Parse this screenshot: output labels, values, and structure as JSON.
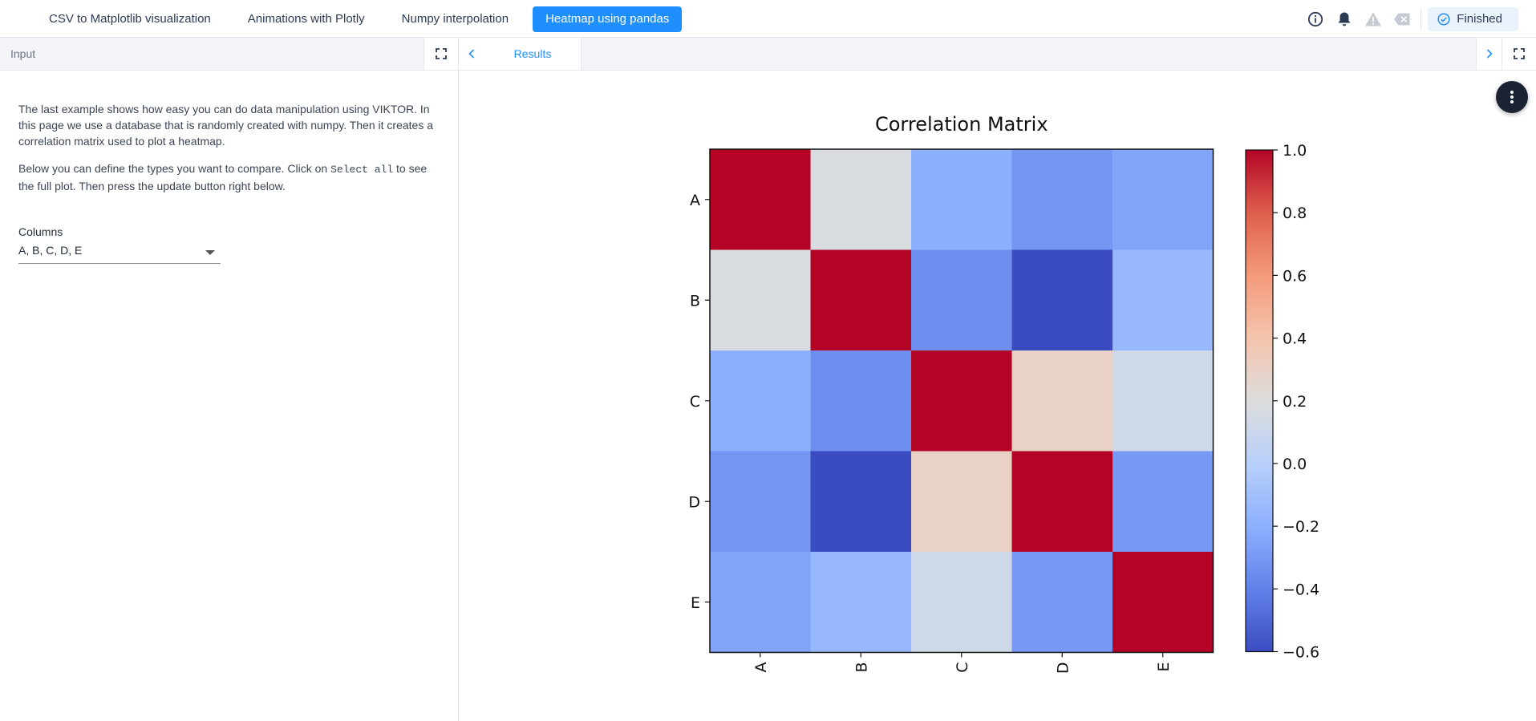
{
  "topbar": {
    "tabs": [
      {
        "label": "CSV to Matplotlib visualization",
        "active": false
      },
      {
        "label": "Animations with Plotly",
        "active": false
      },
      {
        "label": "Numpy interpolation",
        "active": false
      },
      {
        "label": "Heatmap using pandas",
        "active": true
      }
    ],
    "status_label": "Finished",
    "icons": [
      "info-icon",
      "bell-icon",
      "warning-icon",
      "clear-icon",
      "check-circle-icon"
    ]
  },
  "input_panel": {
    "title": "Input",
    "description_1": "The last example shows how easy you can do data manipulation using VIKTOR. In this page we use a database that is randomly created with numpy. Then it creates a correlation matrix used to plot a heatmap.",
    "description_2_before": "Below you can define the types you want to compare. Click on ",
    "description_2_code": "Select all",
    "description_2_after": " to see the full plot. Then press the update button right below.",
    "columns_label": "Columns",
    "columns_value": "A, B, C, D, E"
  },
  "results_panel": {
    "tab_label": "Results"
  },
  "chart_data": {
    "type": "heatmap",
    "title": "Correlation Matrix",
    "rows": [
      "A",
      "B",
      "C",
      "D",
      "E"
    ],
    "columns": [
      "A",
      "B",
      "C",
      "D",
      "E"
    ],
    "values": [
      [
        1.0,
        0.18,
        -0.2,
        -0.31,
        -0.25
      ],
      [
        0.18,
        1.0,
        -0.35,
        -0.6,
        -0.15
      ],
      [
        -0.2,
        -0.35,
        1.0,
        0.3,
        0.12
      ],
      [
        -0.31,
        -0.6,
        0.3,
        1.0,
        -0.3
      ],
      [
        -0.25,
        -0.15,
        0.12,
        -0.3,
        1.0
      ]
    ],
    "colormap": "coolwarm",
    "colorbar_range": [
      -0.6,
      1.0
    ],
    "colorbar_ticks": [
      "1.0",
      "0.8",
      "0.6",
      "0.4",
      "0.2",
      "0.0",
      "−0.2",
      "−0.4",
      "−0.6"
    ],
    "colorbar_tick_values": [
      1.0,
      0.8,
      0.6,
      0.4,
      0.2,
      0.0,
      -0.2,
      -0.4,
      -0.6
    ],
    "grid": false
  },
  "colors": {
    "accent": "#1f8fff",
    "fab": "#1b2333"
  }
}
